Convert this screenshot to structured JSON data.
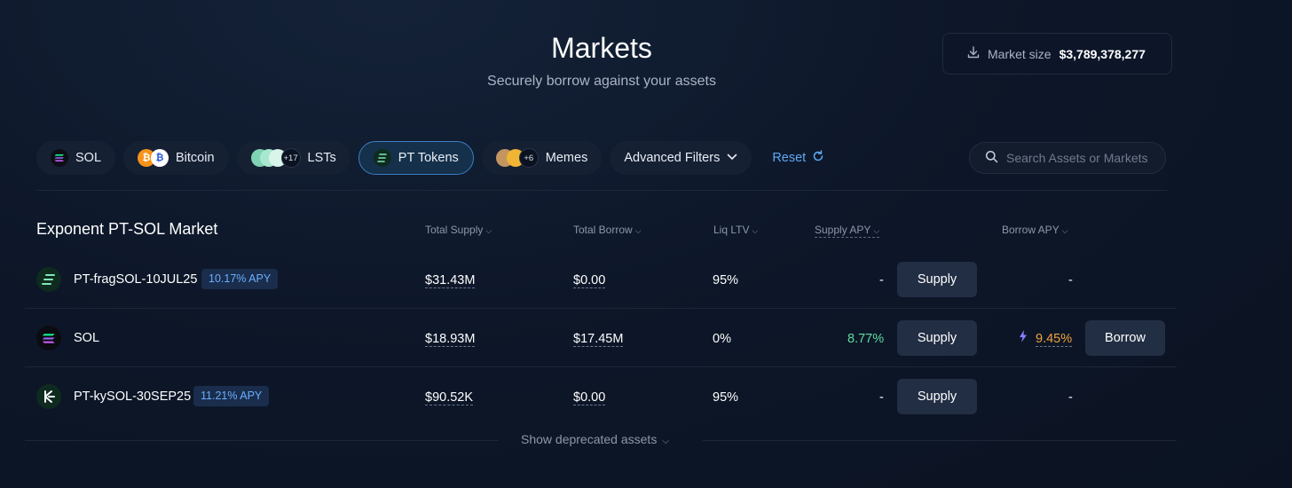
{
  "header": {
    "title": "Markets",
    "subtitle": "Securely borrow against your assets",
    "market_size_label": "Market size",
    "market_size_value": "$3,789,378,277"
  },
  "filters": {
    "sol": "SOL",
    "bitcoin": "Bitcoin",
    "lsts_count": "+17",
    "lsts": "LSTs",
    "pt_tokens": "PT Tokens",
    "memes_count": "+6",
    "memes": "Memes",
    "advanced": "Advanced Filters",
    "reset": "Reset"
  },
  "search": {
    "placeholder": "Search Assets or Markets",
    "value": ""
  },
  "table": {
    "market_title": "Exponent PT-SOL Market",
    "columns": {
      "total_supply": "Total Supply",
      "total_borrow": "Total Borrow",
      "liq_ltv": "Liq LTV",
      "supply_apy": "Supply APY",
      "borrow_apy": "Borrow APY"
    },
    "rows": [
      {
        "name": "PT-fragSOL-10JUL25",
        "badge": "10.17% APY",
        "total_supply": "$31.43M",
        "total_borrow": "$0.00",
        "liq_ltv": "95%",
        "supply_apy": "-",
        "supply_label": "Supply",
        "borrow_apy": "-"
      },
      {
        "name": "SOL",
        "total_supply": "$18.93M",
        "total_borrow": "$17.45M",
        "liq_ltv": "0%",
        "supply_apy": "8.77%",
        "supply_label": "Supply",
        "borrow_apy": "9.45%",
        "borrow_label": "Borrow"
      },
      {
        "name": "PT-kySOL-30SEP25",
        "badge": "11.21% APY",
        "total_supply": "$90.52K",
        "total_borrow": "$0.00",
        "liq_ltv": "95%",
        "supply_apy": "-",
        "supply_label": "Supply",
        "borrow_apy": "-"
      }
    ],
    "show_deprecated": "Show deprecated assets"
  },
  "colors": {
    "accent_blue": "#5fa8f2",
    "green": "#5fdca0",
    "orange": "#f0a33d",
    "background": "#0c1526"
  }
}
